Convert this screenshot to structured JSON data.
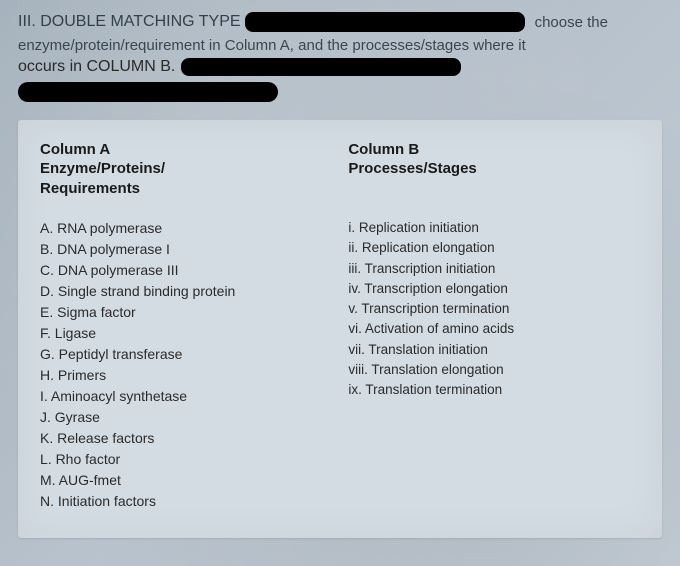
{
  "header": {
    "title_prefix": "III. DOUBLE MATCHING TYPE",
    "choose_text": "choose the",
    "instruction_line1": "enzyme/protein/requirement in Column A, and the processes/stages where it",
    "instruction_line2_prefix": "occurs in COLUMN B."
  },
  "columnA": {
    "header_line1": "Column A",
    "header_line2": "Enzyme/Proteins/",
    "header_line3": "Requirements",
    "items": [
      "A. RNA polymerase",
      "B. DNA polymerase I",
      "C. DNA polymerase III",
      "D. Single strand binding protein",
      "E. Sigma factor",
      "F. Ligase",
      "G. Peptidyl transferase",
      "H. Primers",
      "I. Aminoacyl synthetase",
      "J. Gyrase",
      "K. Release factors",
      "L. Rho factor",
      "M. AUG-fmet",
      "N. Initiation factors"
    ]
  },
  "columnB": {
    "header_line1": "Column B",
    "header_line2": "Processes/Stages",
    "items": [
      "i. Replication initiation",
      "ii. Replication elongation",
      "iii. Transcription initiation",
      "iv. Transcription elongation",
      "v. Transcription termination",
      "vi. Activation of amino acids",
      "vii. Translation initiation",
      "viii. Translation elongation",
      "ix. Translation termination"
    ]
  },
  "colors": {
    "background_top": "#a0adb8",
    "card_bg": "#d4dce3",
    "text": "#2a2a2a",
    "redaction": "#000000"
  }
}
